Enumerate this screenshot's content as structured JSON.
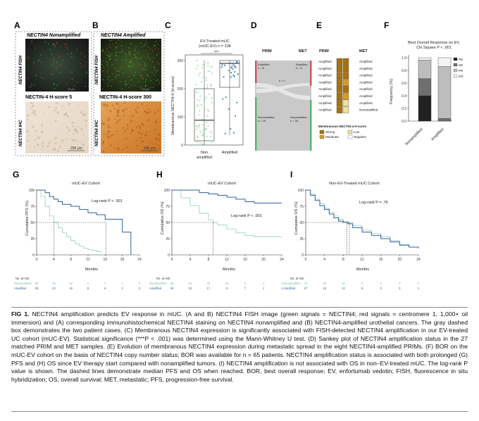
{
  "panelA": {
    "letter": "A",
    "fish_title": "NECTIN4 Nonamplified",
    "fish_side": "NECTIN4 FISH",
    "ihc_title": "NECTIN-4 H-score 5",
    "ihc_side": "NECTIN4 IHC",
    "scale_fish": "10 µm",
    "scale_ihc": "200 µm"
  },
  "panelB": {
    "letter": "B",
    "fish_title": "NECTIN4 Amplified",
    "fish_side": "NECTIN4 FISH",
    "ihc_title": "NECTIN-4 H-score 300",
    "ihc_side": "NECTIN4 IHC",
    "scale_fish": "10 µm",
    "scale_ihc": "200 µm"
  },
  "panelC": {
    "letter": "C",
    "title1": "EV-Treated mUC",
    "title2": "(mUC-EV) n = 108",
    "sig": "***",
    "ylabel": "Membranous NECTIN-4 (H-score)",
    "yticks": [
      "0",
      "100",
      "200",
      "300"
    ],
    "cat1a": "Non",
    "cat1b": "amplified",
    "cat2": "Amplified"
  },
  "panelD": {
    "letter": "D",
    "prim": "PRIM",
    "met": "MET",
    "amp_l": "Amplified",
    "amp_l_n": "n = 8",
    "amp_r": "Amplified",
    "amp_r_n": "n = 9",
    "mid_n": "n = 1",
    "non_l": "Nonamplified",
    "non_l_n": "n = 19",
    "non_r": "Nonamplified",
    "non_r_n": "n = 18"
  },
  "panelE": {
    "letter": "E",
    "prim": "PRIM",
    "met": "MET",
    "rows_left": [
      "Amplified",
      "Amplified",
      "Amplified",
      "Amplified",
      "Amplified",
      "Amplified",
      "Amplified",
      "Amplified"
    ],
    "rows_right": [
      "Amplified",
      "Amplified",
      "Amplified",
      "Amplified",
      "Amplified",
      "Amplified",
      "Amplified",
      "Nonamplified"
    ],
    "legend_title": "Membranous NECTIN-4 H-score",
    "legend": [
      "Strong",
      "Low",
      "Moderate",
      "Negative"
    ],
    "colors": {
      "strong": "#a8720f",
      "moderate": "#d59b2b",
      "low": "#f3dca0",
      "negative": "#ffffff"
    }
  },
  "panelF": {
    "letter": "F",
    "title1": "Best Overall Response on EV,",
    "title2": "Chi Square P < .001",
    "ylabel": "Frequency (%)",
    "yticks": [
      "0.0",
      "0.2",
      "0.4",
      "0.6",
      "0.8",
      "1.0"
    ],
    "cats": [
      "Nonamplified",
      "Amplified"
    ],
    "legend": [
      "PD",
      "SD",
      "PR",
      "CR"
    ],
    "colors": [
      "#222222",
      "#6e6e6e",
      "#bdbdbd",
      "#f4f4f4"
    ]
  },
  "panelG": {
    "letter": "G",
    "title": "mUC-EV Cohort",
    "logrank": "Log-rank P < .001",
    "ylabel": "Cumulative PFS (%)",
    "xlabel": "Months",
    "xticks": [
      "0",
      "4",
      "8",
      "12",
      "16",
      "20",
      "24"
    ],
    "yticks": [
      "0",
      "25",
      "50",
      "75",
      "100"
    ],
    "risk_title": "No. at risk:",
    "risk_rows": [
      {
        "label": "Nonamplified",
        "values": [
          "80",
          "60",
          "15",
          "6",
          "3",
          "1",
          "0"
        ]
      },
      {
        "label": "Amplified",
        "values": [
          "28",
          "23",
          "15",
          "6",
          "6",
          "1",
          "0"
        ]
      }
    ]
  },
  "panelH": {
    "letter": "H",
    "title": "mUC-EV Cohort",
    "logrank": "Log-rank P < .001",
    "ylabel": "Cumulative OS (%)",
    "xlabel": "Months",
    "xticks": [
      "0",
      "4",
      "8",
      "12",
      "16",
      "20",
      "24"
    ],
    "yticks": [
      "0",
      "25",
      "50",
      "75",
      "100"
    ],
    "risk_title": "No. at risk:",
    "risk_rows": [
      {
        "label": "Nonamplified",
        "values": [
          "80",
          "64",
          "33",
          "15",
          "9",
          "4",
          "1"
        ]
      },
      {
        "label": "Amplified",
        "values": [
          "28",
          "24",
          "17",
          "9",
          "7",
          "1",
          "1"
        ]
      }
    ]
  },
  "panelI": {
    "letter": "I",
    "title": "Non-EV-Treated mUC Cohort",
    "logrank": "Log-rank P = .76",
    "ylabel": "Cumulative OS (%)",
    "xlabel": "Months",
    "xticks": [
      "0",
      "4",
      "8",
      "12",
      "16",
      "20",
      "24"
    ],
    "yticks": [
      "0",
      "25",
      "50",
      "75",
      "100"
    ],
    "risk_title": "No. at risk:",
    "risk_rows": [
      {
        "label": "Nonamplified",
        "values": [
          "73",
          "33",
          "18",
          "9",
          "6",
          "3",
          "2"
        ]
      },
      {
        "label": "Amplified",
        "values": [
          "27",
          "16",
          "12",
          "5",
          "3",
          "3",
          "1"
        ]
      }
    ]
  },
  "caption": {
    "fig_label": "FIG 1.",
    "text": " NECTIN4 amplification predicts EV response in mUC. (A and B) NECTIN4 FISH image (green signals = NECTIN4; red signals = centromere 1, 1,000× oil immersion) and (A) corresponding immunohistochemical NECTIN4 staining on NECTIN4 nonamplified and (B) NECTIN4-amplified urothelial cancers. The gray dashed box demonstrates the two patient cases. (C) Membranous NECTIN4 expression is significantly associated with FISH-detected NECTIN4 amplification in our EV-treated UC cohort (mUC-EV). Statistical significance (***P < .001) was determined using the Mann-Whitney U test. (D) Sankey plot of NECTIN4 amplification status in the 27 matched PRIM and MET samples. (E) Evolution of membranous NECTIN4 expression during metastatic spread in the eight NECTIN4-amplified PRIMs. (F) BOR on the mUC-EV cohort on the basis of NECTIN4 copy number status; BOR was available for n = 65 patients. NECTIN4 amplification status is associated with both prolonged (G) PFS and (H) OS since EV therapy start compared with nonamplified tumors. (I) NECTIN4 amplification is not associated with OS in non–EV-treated mUC. The log-rank P value is shown. The dashed lines demonstrate median PFS and OS when reached. BOR, best overall response; EV, enfortumab vedotin; FISH, fluorescence in situ hybridization; OS, overall survival; MET, metastatic; PFS, progression-free survival."
  },
  "chart_data": [
    {
      "type": "scatter",
      "title": "EV-Treated mUC (mUC-EV) n = 108",
      "ylabel": "Membranous NECTIN-4 (H-score)",
      "categories": [
        "Non amplified",
        "Amplified"
      ],
      "ylim": [
        0,
        320
      ],
      "box": [
        {
          "name": "Non amplified",
          "q1": 15,
          "median": 88,
          "q3": 200,
          "min": 0,
          "max": 300
        },
        {
          "name": "Amplified",
          "q1": 205,
          "median": 290,
          "q3": 300,
          "min": 35,
          "max": 300
        }
      ]
    },
    {
      "type": "bar",
      "title": "Best Overall Response on EV, Chi Square P < .001",
      "ylabel": "Frequency (%)",
      "categories": [
        "Nonamplified",
        "Amplified"
      ],
      "ylim": [
        0,
        1
      ],
      "series": [
        {
          "name": "PD",
          "values": [
            0.4,
            0.0
          ]
        },
        {
          "name": "SD",
          "values": [
            0.27,
            0.04
          ]
        },
        {
          "name": "PR",
          "values": [
            0.29,
            0.82
          ]
        },
        {
          "name": "CR",
          "values": [
            0.04,
            0.14
          ]
        }
      ]
    },
    {
      "type": "line",
      "title": "mUC-EV Cohort",
      "ylabel": "Cumulative PFS (%)",
      "xlabel": "Months",
      "xlim": [
        0,
        24
      ],
      "ylim": [
        0,
        100
      ],
      "series": [
        {
          "name": "Nonamplified",
          "x": [
            0,
            1,
            2,
            3,
            4,
            5,
            6,
            7,
            8,
            9,
            10,
            11,
            12,
            13,
            14,
            15
          ],
          "y": [
            100,
            90,
            75,
            60,
            50,
            42,
            34,
            28,
            22,
            17,
            13,
            10,
            8,
            7,
            5,
            4
          ]
        },
        {
          "name": "Amplified",
          "x": [
            0,
            2,
            3,
            4,
            5,
            6,
            8,
            10,
            12,
            14,
            16,
            18,
            20,
            22
          ],
          "y": [
            100,
            96,
            90,
            86,
            82,
            78,
            75,
            70,
            65,
            62,
            55,
            55,
            35,
            0
          ]
        }
      ]
    },
    {
      "type": "line",
      "title": "mUC-EV Cohort",
      "ylabel": "Cumulative OS (%)",
      "xlabel": "Months",
      "xlim": [
        0,
        24
      ],
      "ylim": [
        0,
        100
      ],
      "series": [
        {
          "name": "Nonamplified",
          "x": [
            0,
            2,
            4,
            6,
            8,
            9,
            10,
            12,
            14,
            16,
            18,
            20,
            24
          ],
          "y": [
            100,
            88,
            76,
            64,
            54,
            50,
            46,
            40,
            34,
            30,
            28,
            28,
            28
          ]
        },
        {
          "name": "Amplified",
          "x": [
            0,
            2,
            4,
            6,
            8,
            10,
            12,
            14,
            16,
            18,
            20,
            24
          ],
          "y": [
            100,
            100,
            100,
            96,
            94,
            92,
            89,
            86,
            82,
            80,
            80,
            80
          ]
        }
      ]
    },
    {
      "type": "line",
      "title": "Non-EV-Treated mUC Cohort",
      "ylabel": "Cumulative OS (%)",
      "xlabel": "Months",
      "xlim": [
        0,
        24
      ],
      "ylim": [
        0,
        100
      ],
      "series": [
        {
          "name": "Nonamplified",
          "x": [
            0,
            1,
            2,
            3,
            4,
            5,
            6,
            7,
            8,
            9,
            10,
            12,
            14,
            16,
            18,
            20,
            22,
            24
          ],
          "y": [
            100,
            94,
            86,
            79,
            72,
            66,
            60,
            55,
            52,
            50,
            45,
            38,
            33,
            28,
            22,
            16,
            12,
            10
          ]
        },
        {
          "name": "Amplified",
          "x": [
            0,
            1,
            2,
            3,
            4,
            5,
            6,
            7,
            8,
            9,
            10,
            12,
            14,
            16,
            18,
            20,
            22,
            24
          ],
          "y": [
            100,
            92,
            84,
            76,
            70,
            63,
            57,
            52,
            50,
            48,
            42,
            35,
            30,
            25,
            20,
            15,
            12,
            10
          ]
        }
      ]
    }
  ]
}
